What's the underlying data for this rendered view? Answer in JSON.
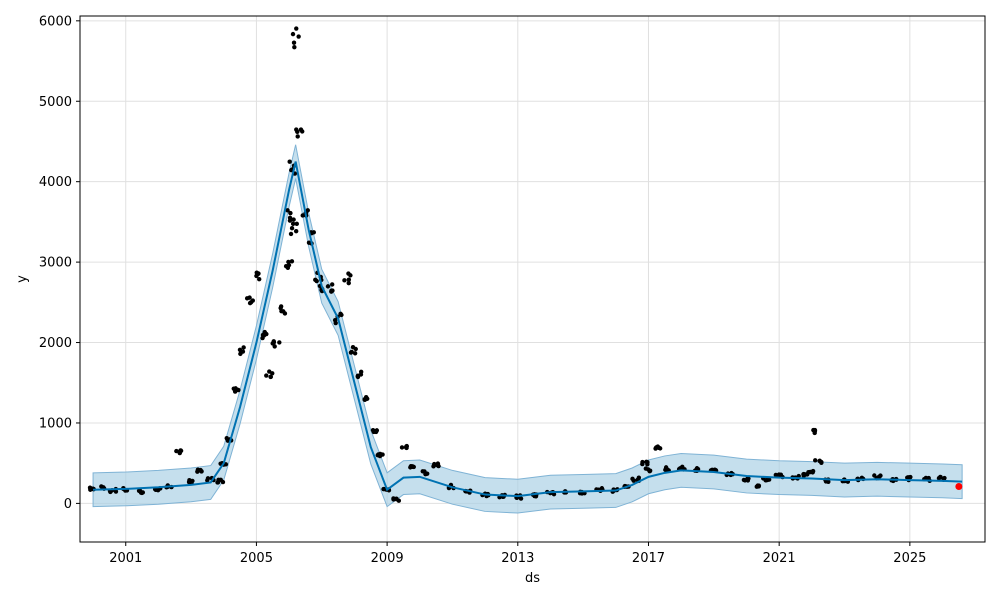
{
  "chart_data": {
    "type": "scatter",
    "title": "",
    "xlabel": "ds",
    "ylabel": "y",
    "xlim": [
      1999.6,
      2027.3
    ],
    "ylim": [
      -480,
      6060
    ],
    "grid": true,
    "x_ticks": [
      2001,
      2005,
      2009,
      2013,
      2017,
      2021,
      2025
    ],
    "x_tick_labels": [
      "2001",
      "2005",
      "2009",
      "2013",
      "2017",
      "2021",
      "2025"
    ],
    "y_ticks": [
      0,
      1000,
      2000,
      3000,
      4000,
      5000,
      6000
    ],
    "y_tick_labels": [
      "0",
      "1000",
      "2000",
      "3000",
      "4000",
      "5000",
      "6000"
    ],
    "colors": {
      "observed": "#000000",
      "forecast_line": "#0072B2",
      "interval_fill": "#A6CEE3",
      "highlight": "#FF0000"
    },
    "forecast": {
      "x": [
        2000.0,
        2001.0,
        2002.0,
        2003.0,
        2003.6,
        2004.0,
        2004.5,
        2005.0,
        2005.5,
        2006.0,
        2006.2,
        2006.6,
        2007.0,
        2007.5,
        2008.0,
        2008.5,
        2009.0,
        2009.5,
        2010.0,
        2011.0,
        2012.0,
        2013.0,
        2014.0,
        2015.0,
        2016.0,
        2016.5,
        2017.0,
        2017.5,
        2018.0,
        2019.0,
        2020.0,
        2021.0,
        2022.0,
        2023.0,
        2024.0,
        2025.0,
        2026.0,
        2026.6
      ],
      "y": [
        170,
        180,
        200,
        230,
        260,
        500,
        1200,
        2000,
        2900,
        3900,
        4250,
        3400,
        2700,
        2300,
        1500,
        700,
        170,
        320,
        330,
        200,
        110,
        90,
        140,
        150,
        160,
        230,
        330,
        380,
        410,
        390,
        340,
        320,
        310,
        290,
        300,
        290,
        280,
        270
      ],
      "interval_half_width": 210
    },
    "observed": {
      "x": [
        2000.0,
        2000.3,
        2000.6,
        2001.0,
        2001.5,
        2002.0,
        2002.3,
        2002.6,
        2003.0,
        2003.3,
        2003.6,
        2003.9,
        2004.0,
        2004.2,
        2004.4,
        2004.6,
        2004.8,
        2005.0,
        2005.2,
        2005.4,
        2005.6,
        2005.8,
        2006.0,
        2006.05,
        2006.1,
        2006.15,
        2006.2,
        2006.3,
        2006.5,
        2006.7,
        2006.9,
        2007.0,
        2007.3,
        2007.5,
        2007.8,
        2008.0,
        2008.2,
        2008.4,
        2008.6,
        2008.8,
        2009.0,
        2009.3,
        2009.5,
        2009.8,
        2010.2,
        2010.5,
        2011.0,
        2011.5,
        2012.0,
        2012.5,
        2013.0,
        2013.5,
        2014.0,
        2014.5,
        2015.0,
        2015.5,
        2016.0,
        2016.3,
        2016.6,
        2016.9,
        2017.0,
        2017.3,
        2017.6,
        2018.0,
        2018.5,
        2019.0,
        2019.5,
        2020.0,
        2020.3,
        2020.6,
        2021.0,
        2021.5,
        2021.8,
        2022.0,
        2022.1,
        2022.2,
        2022.5,
        2023.0,
        2023.5,
        2024.0,
        2024.5,
        2025.0,
        2025.5,
        2026.0
      ],
      "y": [
        180,
        200,
        160,
        170,
        140,
        180,
        210,
        640,
        270,
        400,
        300,
        280,
        500,
        800,
        1400,
        1900,
        2500,
        2800,
        2100,
        1600,
        2000,
        2400,
        3000,
        3600,
        4200,
        3400,
        5770,
        4600,
        3600,
        3300,
        2800,
        2700,
        2700,
        2300,
        2800,
        1900,
        1600,
        1300,
        900,
        600,
        180,
        50,
        700,
        450,
        380,
        480,
        210,
        150,
        110,
        90,
        80,
        100,
        130,
        150,
        140,
        170,
        160,
        200,
        300,
        500,
        420,
        690,
        430,
        440,
        420,
        400,
        360,
        300,
        220,
        300,
        340,
        330,
        360,
        400,
        890,
        520,
        280,
        290,
        300,
        330,
        290,
        310,
        300,
        310
      ],
      "highlight_x": 2026.5,
      "highlight_y": 210
    }
  }
}
